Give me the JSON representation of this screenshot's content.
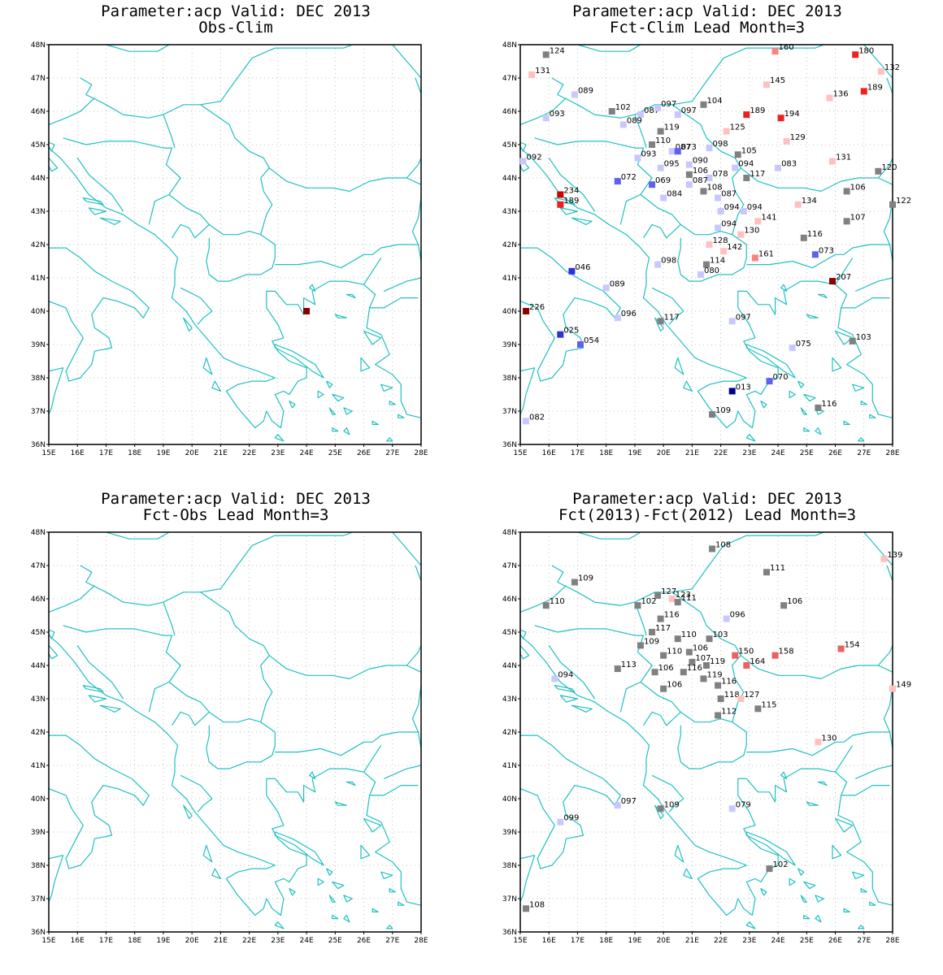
{
  "panels": [
    {
      "id": "obs-clim",
      "title1": "Parameter:acp Valid: DEC 2013",
      "title2": "Obs-Clim",
      "stations": [
        {
          "lon": 24.0,
          "lat": 40.0,
          "color": "#8b0000",
          "label": ""
        }
      ]
    },
    {
      "id": "fct-clim",
      "title1": "Parameter:acp Valid: DEC 2013",
      "title2": "Fct-Clim Lead Month=3",
      "stations": [
        {
          "lon": 15.9,
          "lat": 47.7,
          "color": "#808080",
          "label": "124"
        },
        {
          "lon": 15.4,
          "lat": 47.1,
          "color": "#ffc0c0",
          "label": "131"
        },
        {
          "lon": 16.9,
          "lat": 46.5,
          "color": "#c8c8ff",
          "label": "089"
        },
        {
          "lon": 15.9,
          "lat": 45.8,
          "color": "#c8c8ff",
          "label": "093"
        },
        {
          "lon": 18.2,
          "lat": 46.0,
          "color": "#808080",
          "label": "102"
        },
        {
          "lon": 19.2,
          "lat": 45.9,
          "color": "#c8c8ff",
          "label": "087"
        },
        {
          "lon": 18.6,
          "lat": 45.6,
          "color": "#c8c8ff",
          "label": "089"
        },
        {
          "lon": 19.8,
          "lat": 46.1,
          "color": "#c8c8ff",
          "label": "097"
        },
        {
          "lon": 20.5,
          "lat": 45.9,
          "color": "#c8c8ff",
          "label": "097"
        },
        {
          "lon": 21.4,
          "lat": 46.2,
          "color": "#808080",
          "label": "104"
        },
        {
          "lon": 23.9,
          "lat": 47.8,
          "color": "#ff8080",
          "label": "160"
        },
        {
          "lon": 26.7,
          "lat": 47.7,
          "color": "#ee2020",
          "label": "180"
        },
        {
          "lon": 27.6,
          "lat": 47.2,
          "color": "#ffc0c0",
          "label": "132"
        },
        {
          "lon": 23.6,
          "lat": 46.8,
          "color": "#ffc0c0",
          "label": "145"
        },
        {
          "lon": 25.8,
          "lat": 46.4,
          "color": "#ffc0c0",
          "label": "136"
        },
        {
          "lon": 27.0,
          "lat": 46.6,
          "color": "#ee2020",
          "label": "189"
        },
        {
          "lon": 22.9,
          "lat": 45.9,
          "color": "#ee2020",
          "label": "189"
        },
        {
          "lon": 24.1,
          "lat": 45.8,
          "color": "#ee2020",
          "label": "194"
        },
        {
          "lon": 19.9,
          "lat": 45.4,
          "color": "#808080",
          "label": "119"
        },
        {
          "lon": 22.2,
          "lat": 45.4,
          "color": "#ffc0c0",
          "label": "125"
        },
        {
          "lon": 24.3,
          "lat": 45.1,
          "color": "#ffc0c0",
          "label": "129"
        },
        {
          "lon": 19.6,
          "lat": 45.0,
          "color": "#808080",
          "label": "110"
        },
        {
          "lon": 20.3,
          "lat": 44.8,
          "color": "#c8c8ff",
          "label": "087"
        },
        {
          "lon": 20.5,
          "lat": 44.8,
          "color": "#6060ee",
          "label": "073"
        },
        {
          "lon": 21.6,
          "lat": 44.9,
          "color": "#c8c8ff",
          "label": "098"
        },
        {
          "lon": 22.6,
          "lat": 44.7,
          "color": "#808080",
          "label": "105"
        },
        {
          "lon": 15.1,
          "lat": 44.5,
          "color": "#c8c8ff",
          "label": "092"
        },
        {
          "lon": 19.1,
          "lat": 44.6,
          "color": "#c8c8ff",
          "label": "093"
        },
        {
          "lon": 19.9,
          "lat": 44.3,
          "color": "#c8c8ff",
          "label": "095"
        },
        {
          "lon": 20.9,
          "lat": 44.4,
          "color": "#c8c8ff",
          "label": "090"
        },
        {
          "lon": 22.5,
          "lat": 44.3,
          "color": "#c8c8ff",
          "label": "094"
        },
        {
          "lon": 24.0,
          "lat": 44.3,
          "color": "#c8c8ff",
          "label": "083"
        },
        {
          "lon": 25.9,
          "lat": 44.5,
          "color": "#ffc0c0",
          "label": "131"
        },
        {
          "lon": 27.5,
          "lat": 44.2,
          "color": "#808080",
          "label": "120"
        },
        {
          "lon": 18.4,
          "lat": 43.9,
          "color": "#6060ee",
          "label": "072"
        },
        {
          "lon": 20.9,
          "lat": 44.1,
          "color": "#808080",
          "label": "106"
        },
        {
          "lon": 21.6,
          "lat": 44.0,
          "color": "#c8c8ff",
          "label": "078"
        },
        {
          "lon": 22.9,
          "lat": 44.0,
          "color": "#808080",
          "label": "117"
        },
        {
          "lon": 19.6,
          "lat": 43.8,
          "color": "#6060ee",
          "label": "069"
        },
        {
          "lon": 20.9,
          "lat": 43.8,
          "color": "#c8c8ff",
          "label": "087"
        },
        {
          "lon": 21.4,
          "lat": 43.6,
          "color": "#808080",
          "label": "108"
        },
        {
          "lon": 26.4,
          "lat": 43.6,
          "color": "#808080",
          "label": "106"
        },
        {
          "lon": 16.4,
          "lat": 43.5,
          "color": "#cc0000",
          "label": "234"
        },
        {
          "lon": 16.4,
          "lat": 43.2,
          "color": "#ee2020",
          "label": "189"
        },
        {
          "lon": 20.0,
          "lat": 43.4,
          "color": "#c8c8ff",
          "label": "084"
        },
        {
          "lon": 21.9,
          "lat": 43.4,
          "color": "#c8c8ff",
          "label": "087"
        },
        {
          "lon": 22.0,
          "lat": 43.0,
          "color": "#c8c8ff",
          "label": "094"
        },
        {
          "lon": 22.8,
          "lat": 43.0,
          "color": "#c8c8ff",
          "label": "094"
        },
        {
          "lon": 24.7,
          "lat": 43.2,
          "color": "#ffc0c0",
          "label": "134"
        },
        {
          "lon": 28.0,
          "lat": 43.2,
          "color": "#808080",
          "label": "122"
        },
        {
          "lon": 23.3,
          "lat": 42.7,
          "color": "#ffc0c0",
          "label": "141"
        },
        {
          "lon": 26.4,
          "lat": 42.7,
          "color": "#808080",
          "label": "107"
        },
        {
          "lon": 21.9,
          "lat": 42.5,
          "color": "#c8c8ff",
          "label": "094"
        },
        {
          "lon": 22.7,
          "lat": 42.3,
          "color": "#ffc0c0",
          "label": "130"
        },
        {
          "lon": 24.9,
          "lat": 42.2,
          "color": "#808080",
          "label": "116"
        },
        {
          "lon": 21.6,
          "lat": 42.0,
          "color": "#ffc0c0",
          "label": "128"
        },
        {
          "lon": 22.1,
          "lat": 41.8,
          "color": "#ffc0c0",
          "label": "142"
        },
        {
          "lon": 23.2,
          "lat": 41.6,
          "color": "#ff8080",
          "label": "161"
        },
        {
          "lon": 25.3,
          "lat": 41.7,
          "color": "#6060ee",
          "label": "073"
        },
        {
          "lon": 19.8,
          "lat": 41.4,
          "color": "#c8c8ff",
          "label": "098"
        },
        {
          "lon": 21.5,
          "lat": 41.4,
          "color": "#808080",
          "label": "114"
        },
        {
          "lon": 21.3,
          "lat": 41.1,
          "color": "#c8c8ff",
          "label": "080"
        },
        {
          "lon": 16.8,
          "lat": 41.2,
          "color": "#3030dd",
          "label": "046"
        },
        {
          "lon": 25.9,
          "lat": 40.9,
          "color": "#8b0000",
          "label": "207"
        },
        {
          "lon": 18.0,
          "lat": 40.7,
          "color": "#c8c8ff",
          "label": "089"
        },
        {
          "lon": 15.2,
          "lat": 40.0,
          "color": "#8b0000",
          "label": "226"
        },
        {
          "lon": 18.4,
          "lat": 39.8,
          "color": "#c8c8ff",
          "label": "096"
        },
        {
          "lon": 19.9,
          "lat": 39.7,
          "color": "#808080",
          "label": "117"
        },
        {
          "lon": 22.4,
          "lat": 39.7,
          "color": "#c8c8ff",
          "label": "097"
        },
        {
          "lon": 16.4,
          "lat": 39.3,
          "color": "#3030dd",
          "label": "025"
        },
        {
          "lon": 17.1,
          "lat": 39.0,
          "color": "#6060ee",
          "label": "054"
        },
        {
          "lon": 24.5,
          "lat": 38.9,
          "color": "#c8c8ff",
          "label": "075"
        },
        {
          "lon": 26.6,
          "lat": 39.1,
          "color": "#808080",
          "label": "103"
        },
        {
          "lon": 23.7,
          "lat": 37.9,
          "color": "#6060ee",
          "label": "070"
        },
        {
          "lon": 22.4,
          "lat": 37.6,
          "color": "#000090",
          "label": "013"
        },
        {
          "lon": 25.4,
          "lat": 37.1,
          "color": "#808080",
          "label": "116"
        },
        {
          "lon": 21.7,
          "lat": 36.9,
          "color": "#808080",
          "label": "109"
        },
        {
          "lon": 15.2,
          "lat": 36.7,
          "color": "#c8c8ff",
          "label": "082"
        }
      ]
    },
    {
      "id": "fct-obs",
      "title1": "Parameter:acp Valid: DEC 2013",
      "title2": "Fct-Obs Lead Month=3",
      "stations": []
    },
    {
      "id": "fct-diff",
      "title1": "Parameter:acp Valid: DEC 2013",
      "title2": "Fct(2013)-Fct(2012) Lead Month=3",
      "stations": [
        {
          "lon": 21.7,
          "lat": 47.5,
          "color": "#808080",
          "label": "108"
        },
        {
          "lon": 27.7,
          "lat": 47.2,
          "color": "#ffc0c0",
          "label": "139"
        },
        {
          "lon": 23.6,
          "lat": 46.8,
          "color": "#808080",
          "label": "111"
        },
        {
          "lon": 16.9,
          "lat": 46.5,
          "color": "#808080",
          "label": "109"
        },
        {
          "lon": 15.9,
          "lat": 45.8,
          "color": "#808080",
          "label": "110"
        },
        {
          "lon": 19.8,
          "lat": 46.1,
          "color": "#808080",
          "label": "127"
        },
        {
          "lon": 20.3,
          "lat": 46.0,
          "color": "#ffc0c0",
          "label": "123"
        },
        {
          "lon": 19.1,
          "lat": 45.8,
          "color": "#808080",
          "label": "102"
        },
        {
          "lon": 20.5,
          "lat": 45.9,
          "color": "#808080",
          "label": "111"
        },
        {
          "lon": 24.2,
          "lat": 45.8,
          "color": "#808080",
          "label": "106"
        },
        {
          "lon": 22.2,
          "lat": 45.4,
          "color": "#c8c8ff",
          "label": "096"
        },
        {
          "lon": 19.9,
          "lat": 45.4,
          "color": "#808080",
          "label": "116"
        },
        {
          "lon": 19.6,
          "lat": 45.0,
          "color": "#808080",
          "label": "117"
        },
        {
          "lon": 20.5,
          "lat": 44.8,
          "color": "#808080",
          "label": "110"
        },
        {
          "lon": 21.6,
          "lat": 44.8,
          "color": "#808080",
          "label": "103"
        },
        {
          "lon": 19.2,
          "lat": 44.6,
          "color": "#808080",
          "label": "109"
        },
        {
          "lon": 20.0,
          "lat": 44.3,
          "color": "#808080",
          "label": "110"
        },
        {
          "lon": 20.9,
          "lat": 44.4,
          "color": "#808080",
          "label": "106"
        },
        {
          "lon": 22.5,
          "lat": 44.3,
          "color": "#ee6060",
          "label": "150"
        },
        {
          "lon": 23.9,
          "lat": 44.3,
          "color": "#ee6060",
          "label": "158"
        },
        {
          "lon": 26.2,
          "lat": 44.5,
          "color": "#ee6060",
          "label": "154"
        },
        {
          "lon": 22.9,
          "lat": 44.0,
          "color": "#ee6060",
          "label": "164"
        },
        {
          "lon": 21.0,
          "lat": 44.1,
          "color": "#808080",
          "label": "107"
        },
        {
          "lon": 21.5,
          "lat": 44.0,
          "color": "#808080",
          "label": "119"
        },
        {
          "lon": 18.4,
          "lat": 43.9,
          "color": "#808080",
          "label": "113"
        },
        {
          "lon": 19.7,
          "lat": 43.8,
          "color": "#808080",
          "label": "106"
        },
        {
          "lon": 20.7,
          "lat": 43.8,
          "color": "#808080",
          "label": "116"
        },
        {
          "lon": 21.4,
          "lat": 43.6,
          "color": "#808080",
          "label": "119"
        },
        {
          "lon": 16.2,
          "lat": 43.6,
          "color": "#c8c8ff",
          "label": "094"
        },
        {
          "lon": 20.0,
          "lat": 43.3,
          "color": "#808080",
          "label": "106"
        },
        {
          "lon": 21.9,
          "lat": 43.4,
          "color": "#808080",
          "label": "116"
        },
        {
          "lon": 22.0,
          "lat": 43.0,
          "color": "#808080",
          "label": "118"
        },
        {
          "lon": 22.7,
          "lat": 43.0,
          "color": "#ffc0c0",
          "label": "127"
        },
        {
          "lon": 28.0,
          "lat": 43.3,
          "color": "#ffc0c0",
          "label": "149"
        },
        {
          "lon": 23.3,
          "lat": 42.7,
          "color": "#808080",
          "label": "115"
        },
        {
          "lon": 21.9,
          "lat": 42.5,
          "color": "#808080",
          "label": "112"
        },
        {
          "lon": 25.4,
          "lat": 41.7,
          "color": "#ffc0c0",
          "label": "130"
        },
        {
          "lon": 18.4,
          "lat": 39.8,
          "color": "#c8c8ff",
          "label": "097"
        },
        {
          "lon": 19.9,
          "lat": 39.7,
          "color": "#808080",
          "label": "109"
        },
        {
          "lon": 22.4,
          "lat": 39.7,
          "color": "#c8c8ff",
          "label": "079"
        },
        {
          "lon": 16.4,
          "lat": 39.3,
          "color": "#c8c8ff",
          "label": "099"
        },
        {
          "lon": 23.7,
          "lat": 37.9,
          "color": "#808080",
          "label": "102"
        },
        {
          "lon": 15.2,
          "lat": 36.7,
          "color": "#808080",
          "label": "108"
        }
      ]
    }
  ],
  "axes": {
    "lon_labels": [
      "15E",
      "16E",
      "17E",
      "18E",
      "19E",
      "20E",
      "21E",
      "22E",
      "23E",
      "24E",
      "25E",
      "26E",
      "27E",
      "28E"
    ],
    "lat_labels": [
      "36N",
      "37N",
      "38N",
      "39N",
      "40N",
      "41N",
      "42N",
      "43N",
      "44N",
      "45N",
      "46N",
      "47N",
      "48N"
    ],
    "lon_range": [
      15,
      28
    ],
    "lat_range": [
      36,
      48
    ]
  },
  "colors": {
    "coast": "#20c0c0",
    "grid": "#b0b0b0",
    "frame": "#000000"
  }
}
